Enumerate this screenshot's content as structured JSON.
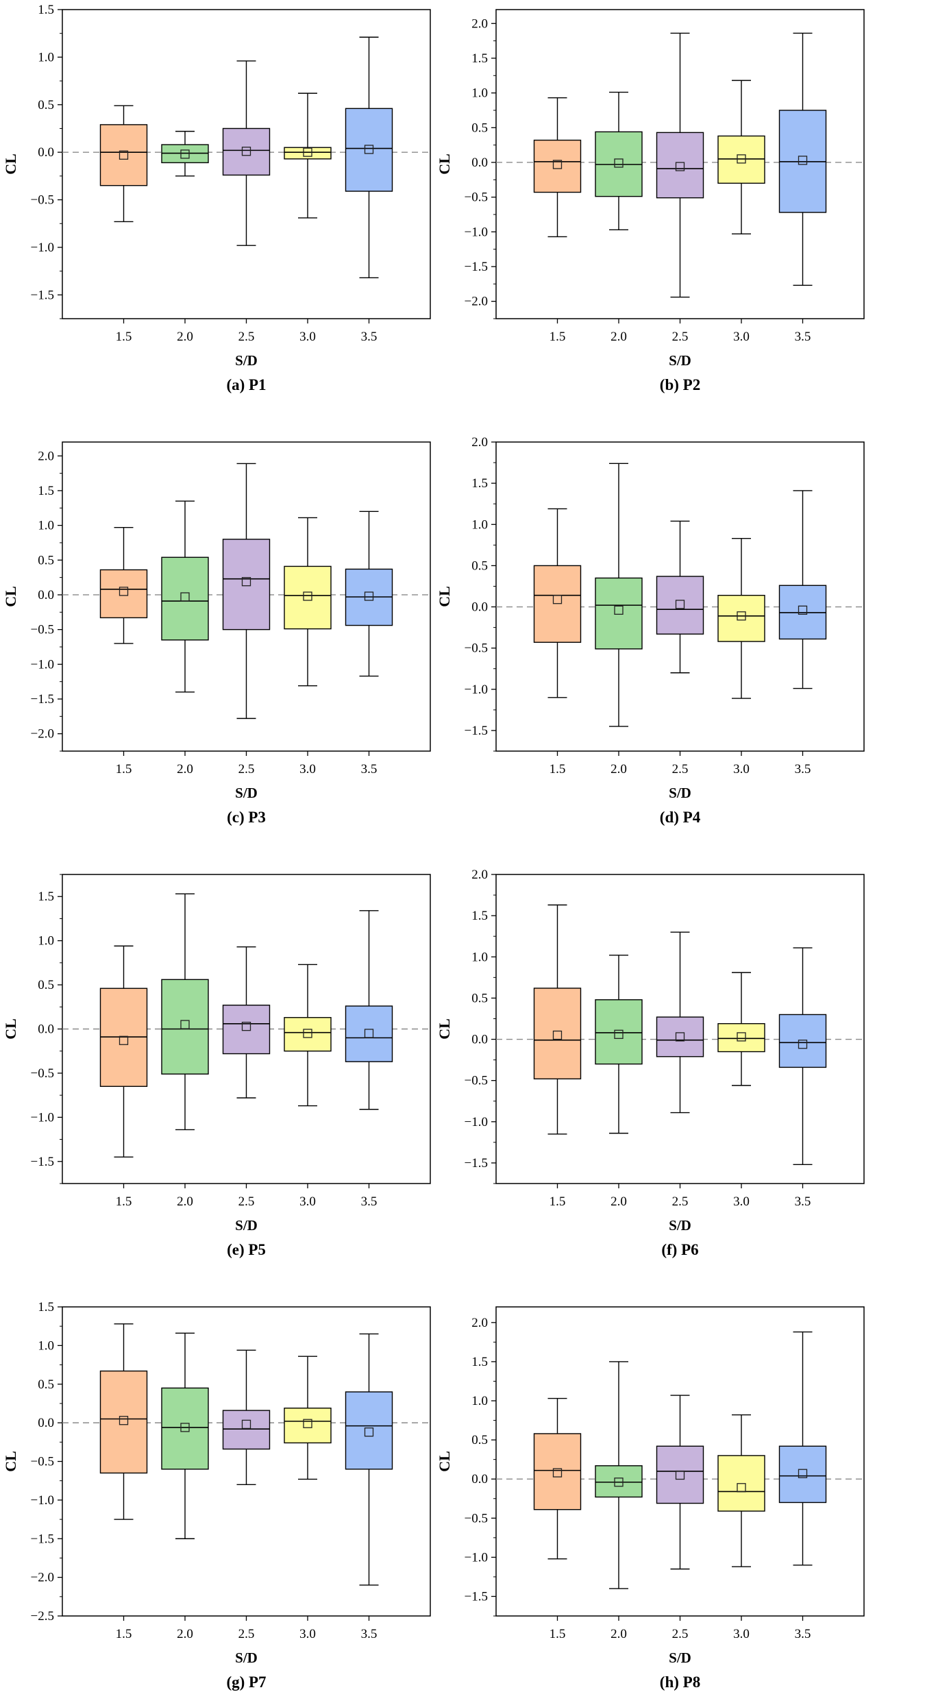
{
  "colors": {
    "box_fills": [
      "#fdc49a",
      "#9fdc9c",
      "#c7b4dc",
      "#fdfc9c",
      "#9fbff7"
    ],
    "frame": "#000000",
    "zero_line": "#8a8a8a",
    "text": "#000000"
  },
  "chart_data": [
    {
      "id": "P1",
      "type": "box",
      "caption": "(a) P1",
      "xlabel": "S/D",
      "ylabel": "CL",
      "categories": [
        "1.5",
        "2.0",
        "2.5",
        "3.0",
        "3.5"
      ],
      "ylim": [
        -1.75,
        1.5
      ],
      "yticks": [
        -1.5,
        -1.0,
        -0.5,
        0.0,
        0.5,
        1.0,
        1.5
      ],
      "yticklabels": [
        "−1.5",
        "−1.0",
        "−0.5",
        "0.0",
        "0.5",
        "1.0",
        "1.5"
      ],
      "boxes": [
        {
          "min": -0.73,
          "q1": -0.35,
          "median": 0.0,
          "q3": 0.29,
          "max": 0.49,
          "mean": -0.03
        },
        {
          "min": -0.25,
          "q1": -0.11,
          "median": -0.01,
          "q3": 0.08,
          "max": 0.22,
          "mean": -0.02
        },
        {
          "min": -0.98,
          "q1": -0.24,
          "median": 0.02,
          "q3": 0.25,
          "max": 0.96,
          "mean": 0.01
        },
        {
          "min": -0.69,
          "q1": -0.07,
          "median": 0.0,
          "q3": 0.05,
          "max": 0.62,
          "mean": 0.0
        },
        {
          "min": -1.32,
          "q1": -0.41,
          "median": 0.04,
          "q3": 0.46,
          "max": 1.21,
          "mean": 0.03
        }
      ]
    },
    {
      "id": "P2",
      "type": "box",
      "caption": "(b) P2",
      "xlabel": "S/D",
      "ylabel": "CL",
      "categories": [
        "1.5",
        "2.0",
        "2.5",
        "3.0",
        "3.5"
      ],
      "ylim": [
        -2.25,
        2.2
      ],
      "yticks": [
        -2.0,
        -1.5,
        -1.0,
        -0.5,
        0.0,
        0.5,
        1.0,
        1.5,
        2.0
      ],
      "yticklabels": [
        "−2.0",
        "−1.5",
        "−1.0",
        "−0.5",
        "0.0",
        "0.5",
        "1.0",
        "1.5",
        "2.0"
      ],
      "boxes": [
        {
          "min": -1.07,
          "q1": -0.43,
          "median": 0.01,
          "q3": 0.32,
          "max": 0.93,
          "mean": -0.03
        },
        {
          "min": -0.97,
          "q1": -0.49,
          "median": -0.03,
          "q3": 0.44,
          "max": 1.01,
          "mean": -0.01
        },
        {
          "min": -1.94,
          "q1": -0.51,
          "median": -0.09,
          "q3": 0.43,
          "max": 1.86,
          "mean": -0.06
        },
        {
          "min": -1.03,
          "q1": -0.3,
          "median": 0.05,
          "q3": 0.38,
          "max": 1.18,
          "mean": 0.05
        },
        {
          "min": -1.77,
          "q1": -0.72,
          "median": 0.01,
          "q3": 0.75,
          "max": 1.86,
          "mean": 0.03
        }
      ]
    },
    {
      "id": "P3",
      "type": "box",
      "caption": "(c) P3",
      "xlabel": "S/D",
      "ylabel": "CL",
      "categories": [
        "1.5",
        "2.0",
        "2.5",
        "3.0",
        "3.5"
      ],
      "ylim": [
        -2.25,
        2.2
      ],
      "yticks": [
        -2.0,
        -1.5,
        -1.0,
        -0.5,
        0.0,
        0.5,
        1.0,
        1.5,
        2.0
      ],
      "yticklabels": [
        "−2.0",
        "−1.5",
        "−1.0",
        "−0.5",
        "0.0",
        "0.5",
        "1.0",
        "1.5",
        "2.0"
      ],
      "boxes": [
        {
          "min": -0.7,
          "q1": -0.33,
          "median": 0.08,
          "q3": 0.36,
          "max": 0.97,
          "mean": 0.05
        },
        {
          "min": -1.4,
          "q1": -0.65,
          "median": -0.09,
          "q3": 0.54,
          "max": 1.35,
          "mean": -0.03
        },
        {
          "min": -1.78,
          "q1": -0.5,
          "median": 0.23,
          "q3": 0.8,
          "max": 1.89,
          "mean": 0.19
        },
        {
          "min": -1.31,
          "q1": -0.49,
          "median": -0.01,
          "q3": 0.41,
          "max": 1.11,
          "mean": -0.02
        },
        {
          "min": -1.17,
          "q1": -0.44,
          "median": -0.03,
          "q3": 0.37,
          "max": 1.2,
          "mean": -0.02
        }
      ]
    },
    {
      "id": "P4",
      "type": "box",
      "caption": "(d) P4",
      "xlabel": "S/D",
      "ylabel": "CL",
      "categories": [
        "1.5",
        "2.0",
        "2.5",
        "3.0",
        "3.5"
      ],
      "ylim": [
        -1.75,
        2.0
      ],
      "yticks": [
        -1.5,
        -1.0,
        -0.5,
        0.0,
        0.5,
        1.0,
        1.5,
        2.0
      ],
      "yticklabels": [
        "−1.5",
        "−1.0",
        "−0.5",
        "0.0",
        "0.5",
        "1.0",
        "1.5",
        "2.0"
      ],
      "boxes": [
        {
          "min": -1.1,
          "q1": -0.43,
          "median": 0.14,
          "q3": 0.5,
          "max": 1.19,
          "mean": 0.09
        },
        {
          "min": -1.45,
          "q1": -0.51,
          "median": 0.02,
          "q3": 0.35,
          "max": 1.74,
          "mean": -0.04
        },
        {
          "min": -0.8,
          "q1": -0.33,
          "median": -0.03,
          "q3": 0.37,
          "max": 1.04,
          "mean": 0.03
        },
        {
          "min": -1.11,
          "q1": -0.42,
          "median": -0.11,
          "q3": 0.14,
          "max": 0.83,
          "mean": -0.11
        },
        {
          "min": -0.99,
          "q1": -0.39,
          "median": -0.07,
          "q3": 0.26,
          "max": 1.41,
          "mean": -0.04
        }
      ]
    },
    {
      "id": "P5",
      "type": "box",
      "caption": "(e) P5",
      "xlabel": "S/D",
      "ylabel": "CL",
      "categories": [
        "1.5",
        "2.0",
        "2.5",
        "3.0",
        "3.5"
      ],
      "ylim": [
        -1.75,
        1.75
      ],
      "yticks": [
        -1.5,
        -1.0,
        -0.5,
        0.0,
        0.5,
        1.0,
        1.5
      ],
      "yticklabels": [
        "−1.5",
        "−1.0",
        "−0.5",
        "0.0",
        "0.5",
        "1.0",
        "1.5"
      ],
      "boxes": [
        {
          "min": -1.45,
          "q1": -0.65,
          "median": -0.09,
          "q3": 0.46,
          "max": 0.94,
          "mean": -0.13
        },
        {
          "min": -1.14,
          "q1": -0.51,
          "median": 0.0,
          "q3": 0.56,
          "max": 1.53,
          "mean": 0.05
        },
        {
          "min": -0.78,
          "q1": -0.28,
          "median": 0.06,
          "q3": 0.27,
          "max": 0.93,
          "mean": 0.03
        },
        {
          "min": -0.87,
          "q1": -0.25,
          "median": -0.04,
          "q3": 0.13,
          "max": 0.73,
          "mean": -0.05
        },
        {
          "min": -0.91,
          "q1": -0.37,
          "median": -0.1,
          "q3": 0.26,
          "max": 1.34,
          "mean": -0.05
        }
      ]
    },
    {
      "id": "P6",
      "type": "box",
      "caption": "(f) P6",
      "xlabel": "S/D",
      "ylabel": "CL",
      "categories": [
        "1.5",
        "2.0",
        "2.5",
        "3.0",
        "3.5"
      ],
      "ylim": [
        -1.75,
        2.0
      ],
      "yticks": [
        -1.5,
        -1.0,
        -0.5,
        0.0,
        0.5,
        1.0,
        1.5,
        2.0
      ],
      "yticklabels": [
        "−1.5",
        "−1.0",
        "−0.5",
        "0.0",
        "0.5",
        "1.0",
        "1.5",
        "2.0"
      ],
      "boxes": [
        {
          "min": -1.15,
          "q1": -0.48,
          "median": -0.01,
          "q3": 0.62,
          "max": 1.63,
          "mean": 0.05
        },
        {
          "min": -1.14,
          "q1": -0.3,
          "median": 0.08,
          "q3": 0.48,
          "max": 1.02,
          "mean": 0.06
        },
        {
          "min": -0.89,
          "q1": -0.21,
          "median": -0.01,
          "q3": 0.27,
          "max": 1.3,
          "mean": 0.03
        },
        {
          "min": -0.56,
          "q1": -0.15,
          "median": 0.01,
          "q3": 0.19,
          "max": 0.81,
          "mean": 0.03
        },
        {
          "min": -1.52,
          "q1": -0.34,
          "median": -0.04,
          "q3": 0.3,
          "max": 1.11,
          "mean": -0.06
        }
      ]
    },
    {
      "id": "P7",
      "type": "box",
      "caption": "(g) P7",
      "xlabel": "S/D",
      "ylabel": "CL",
      "categories": [
        "1.5",
        "2.0",
        "2.5",
        "3.0",
        "3.5"
      ],
      "ylim": [
        -2.5,
        1.5
      ],
      "yticks": [
        -2.5,
        -2.0,
        -1.5,
        -1.0,
        -0.5,
        0.0,
        0.5,
        1.0,
        1.5
      ],
      "yticklabels": [
        "−2.5",
        "−2.0",
        "−1.5",
        "−1.0",
        "−0.5",
        "0.0",
        "0.5",
        "1.0",
        "1.5"
      ],
      "boxes": [
        {
          "min": -1.25,
          "q1": -0.65,
          "median": 0.05,
          "q3": 0.67,
          "max": 1.28,
          "mean": 0.03
        },
        {
          "min": -1.5,
          "q1": -0.6,
          "median": -0.06,
          "q3": 0.45,
          "max": 1.16,
          "mean": -0.06
        },
        {
          "min": -0.8,
          "q1": -0.34,
          "median": -0.08,
          "q3": 0.16,
          "max": 0.94,
          "mean": -0.02
        },
        {
          "min": -0.73,
          "q1": -0.26,
          "median": 0.02,
          "q3": 0.19,
          "max": 0.86,
          "mean": -0.01
        },
        {
          "min": -2.1,
          "q1": -0.6,
          "median": -0.04,
          "q3": 0.4,
          "max": 1.15,
          "mean": -0.12
        }
      ]
    },
    {
      "id": "P8",
      "type": "box",
      "caption": "(h) P8",
      "xlabel": "S/D",
      "ylabel": "CL",
      "categories": [
        "1.5",
        "2.0",
        "2.5",
        "3.0",
        "3.5"
      ],
      "ylim": [
        -1.75,
        2.2
      ],
      "yticks": [
        -1.5,
        -1.0,
        -0.5,
        0.0,
        0.5,
        1.0,
        1.5,
        2.0
      ],
      "yticklabels": [
        "−1.5",
        "−1.0",
        "−0.5",
        "0.0",
        "0.5",
        "1.0",
        "1.5",
        "2.0"
      ],
      "boxes": [
        {
          "min": -1.02,
          "q1": -0.39,
          "median": 0.11,
          "q3": 0.58,
          "max": 1.03,
          "mean": 0.08
        },
        {
          "min": -1.4,
          "q1": -0.23,
          "median": -0.04,
          "q3": 0.17,
          "max": 1.5,
          "mean": -0.04
        },
        {
          "min": -1.15,
          "q1": -0.31,
          "median": 0.1,
          "q3": 0.42,
          "max": 1.07,
          "mean": 0.05
        },
        {
          "min": -1.12,
          "q1": -0.41,
          "median": -0.16,
          "q3": 0.3,
          "max": 0.82,
          "mean": -0.11
        },
        {
          "min": -1.1,
          "q1": -0.3,
          "median": 0.04,
          "q3": 0.42,
          "max": 1.88,
          "mean": 0.07
        }
      ]
    }
  ]
}
